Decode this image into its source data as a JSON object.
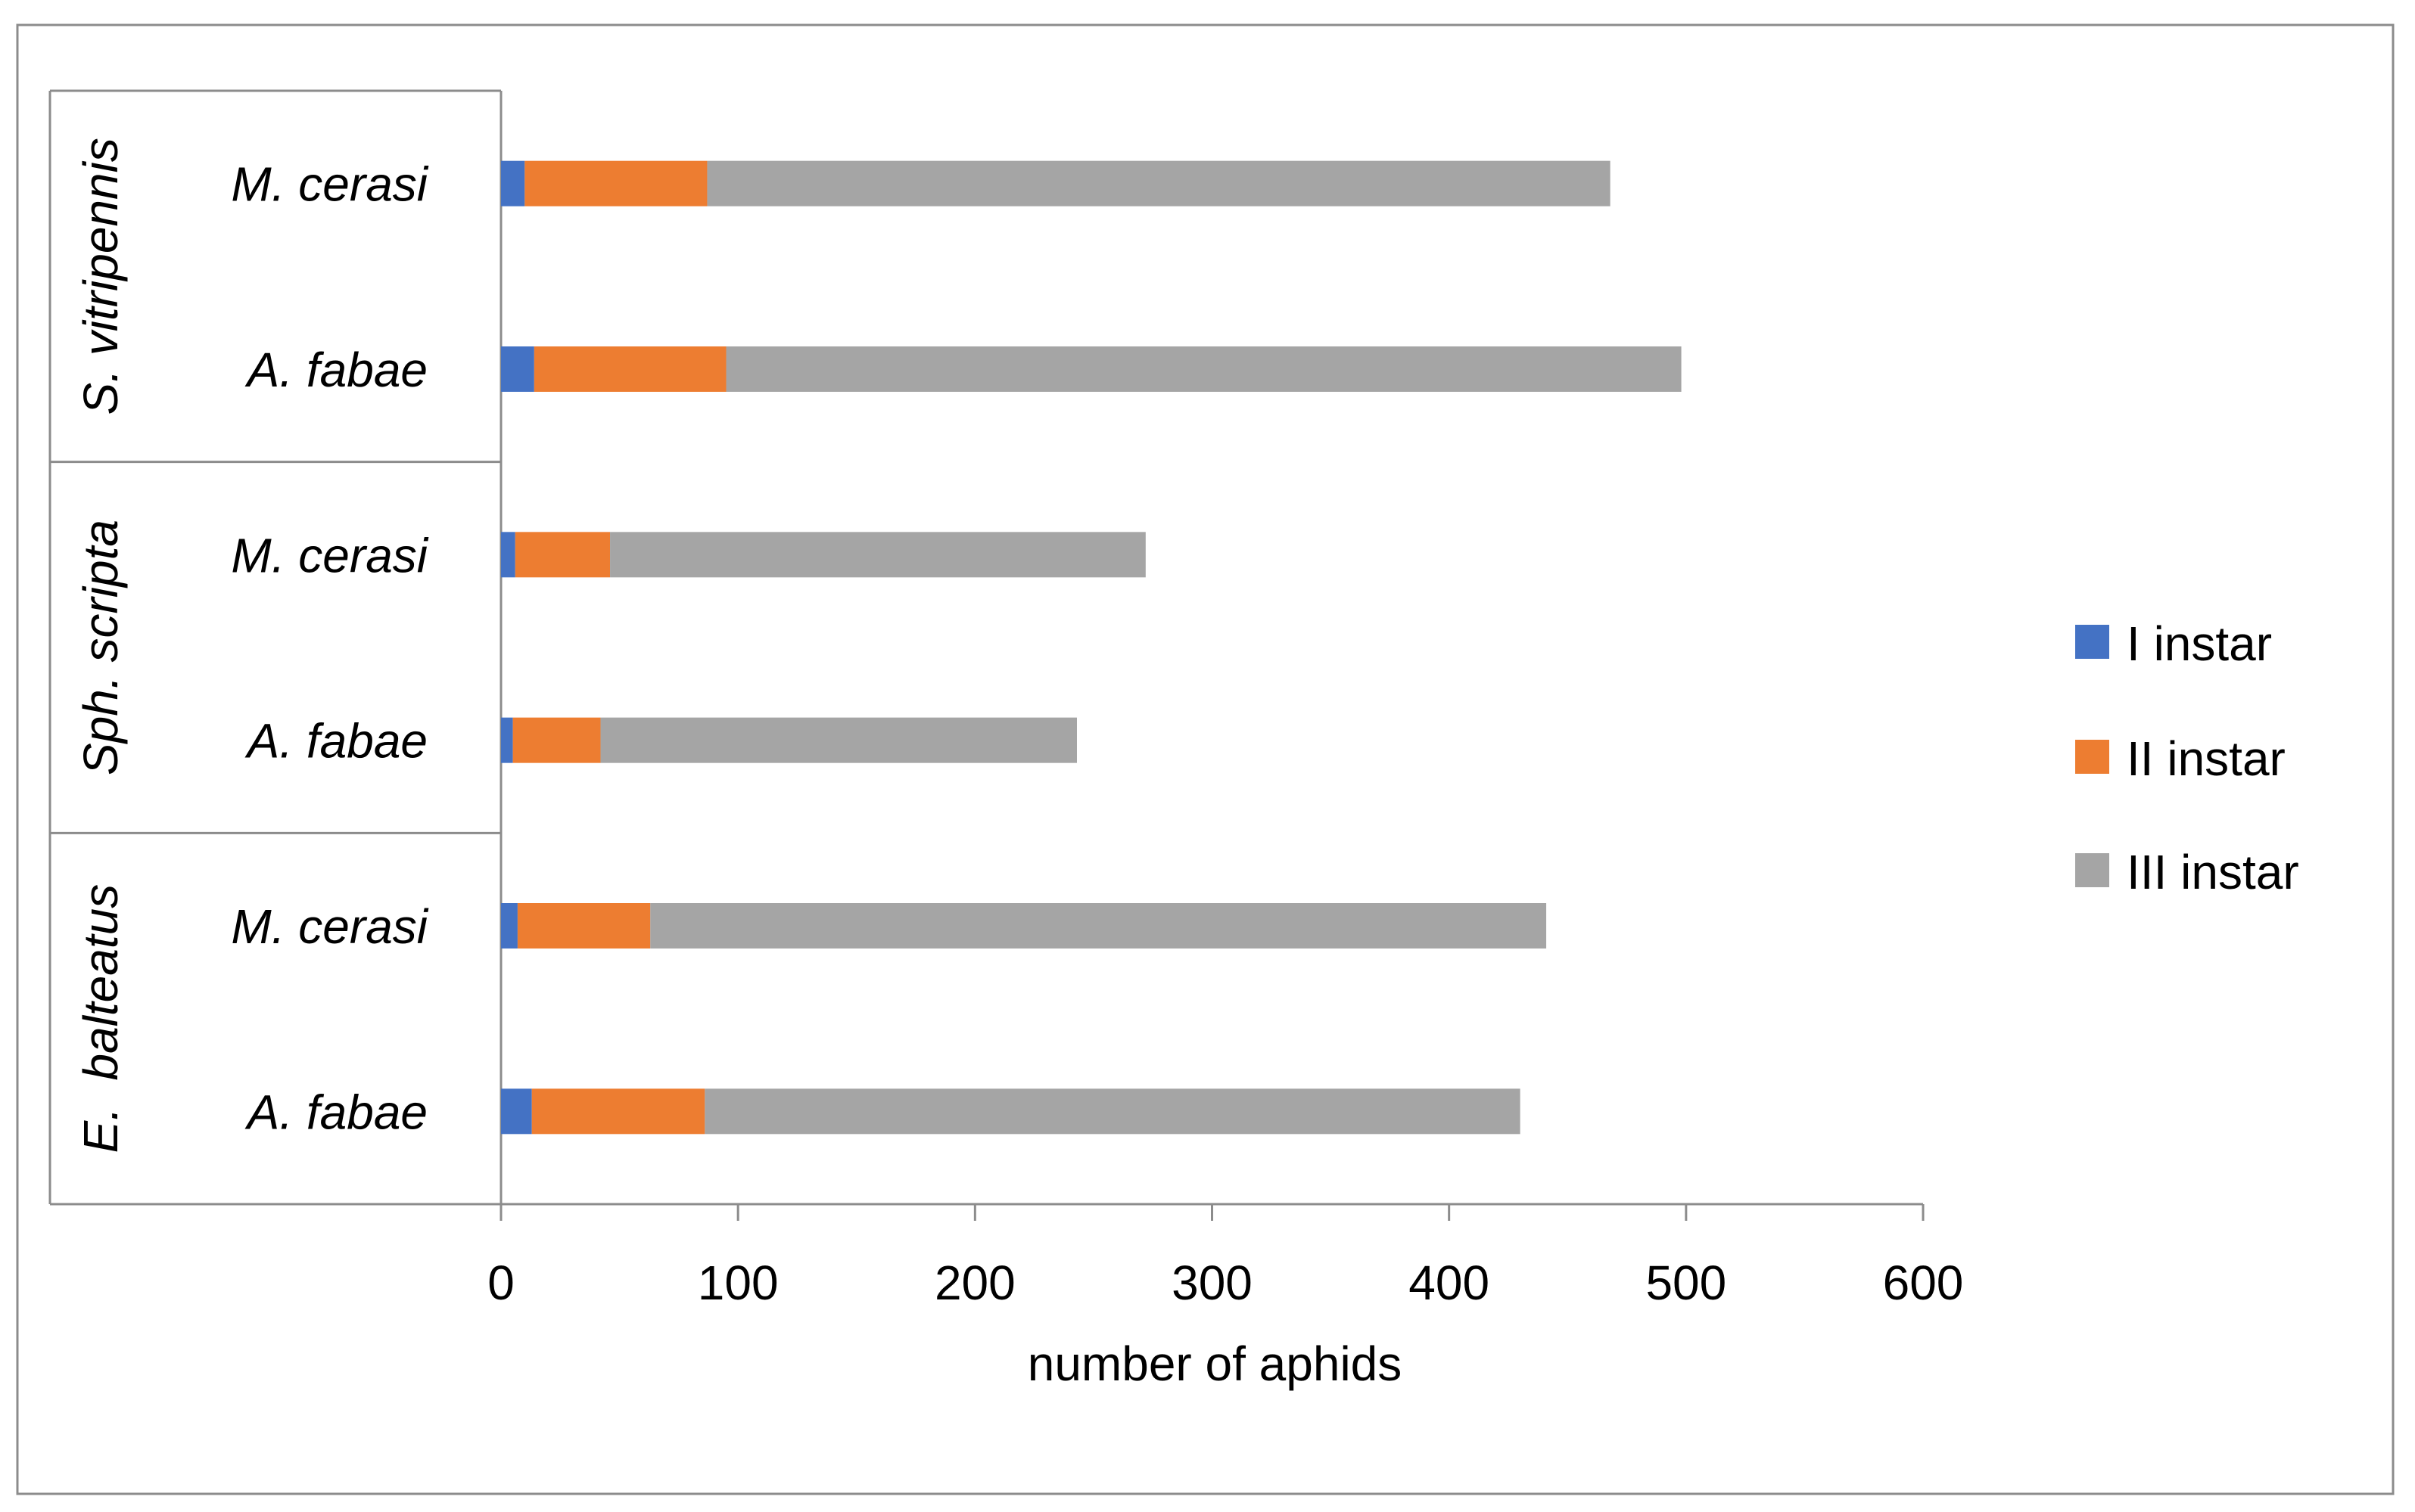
{
  "chart_data": {
    "type": "bar",
    "orientation": "horizontal",
    "stacked": true,
    "title": "",
    "xlabel": "number of aphids",
    "ylabel": "",
    "xlim": [
      0,
      600
    ],
    "x_ticks": [
      0,
      100,
      200,
      300,
      400,
      500,
      600
    ],
    "grid": false,
    "legend_position": "right",
    "groups": [
      {
        "name": "E.  balteatus",
        "categories": [
          "A. fabae",
          "M. cerasi"
        ]
      },
      {
        "name": "Sph. scripta",
        "categories": [
          "A. fabae",
          "M. cerasi"
        ]
      },
      {
        "name": "S. vitripennis",
        "categories": [
          "A. fabae",
          "M. cerasi"
        ]
      }
    ],
    "series": [
      {
        "name": "I instar",
        "color": "#4472C4",
        "values": [
          13,
          7,
          5,
          6,
          14,
          10
        ]
      },
      {
        "name": "II instar",
        "color": "#ED7D31",
        "values": [
          73,
          56,
          37,
          40,
          81,
          77
        ]
      },
      {
        "name": "III instar",
        "color": "#A5A5A5",
        "values": [
          344,
          378,
          201,
          226,
          403,
          381
        ]
      }
    ]
  }
}
